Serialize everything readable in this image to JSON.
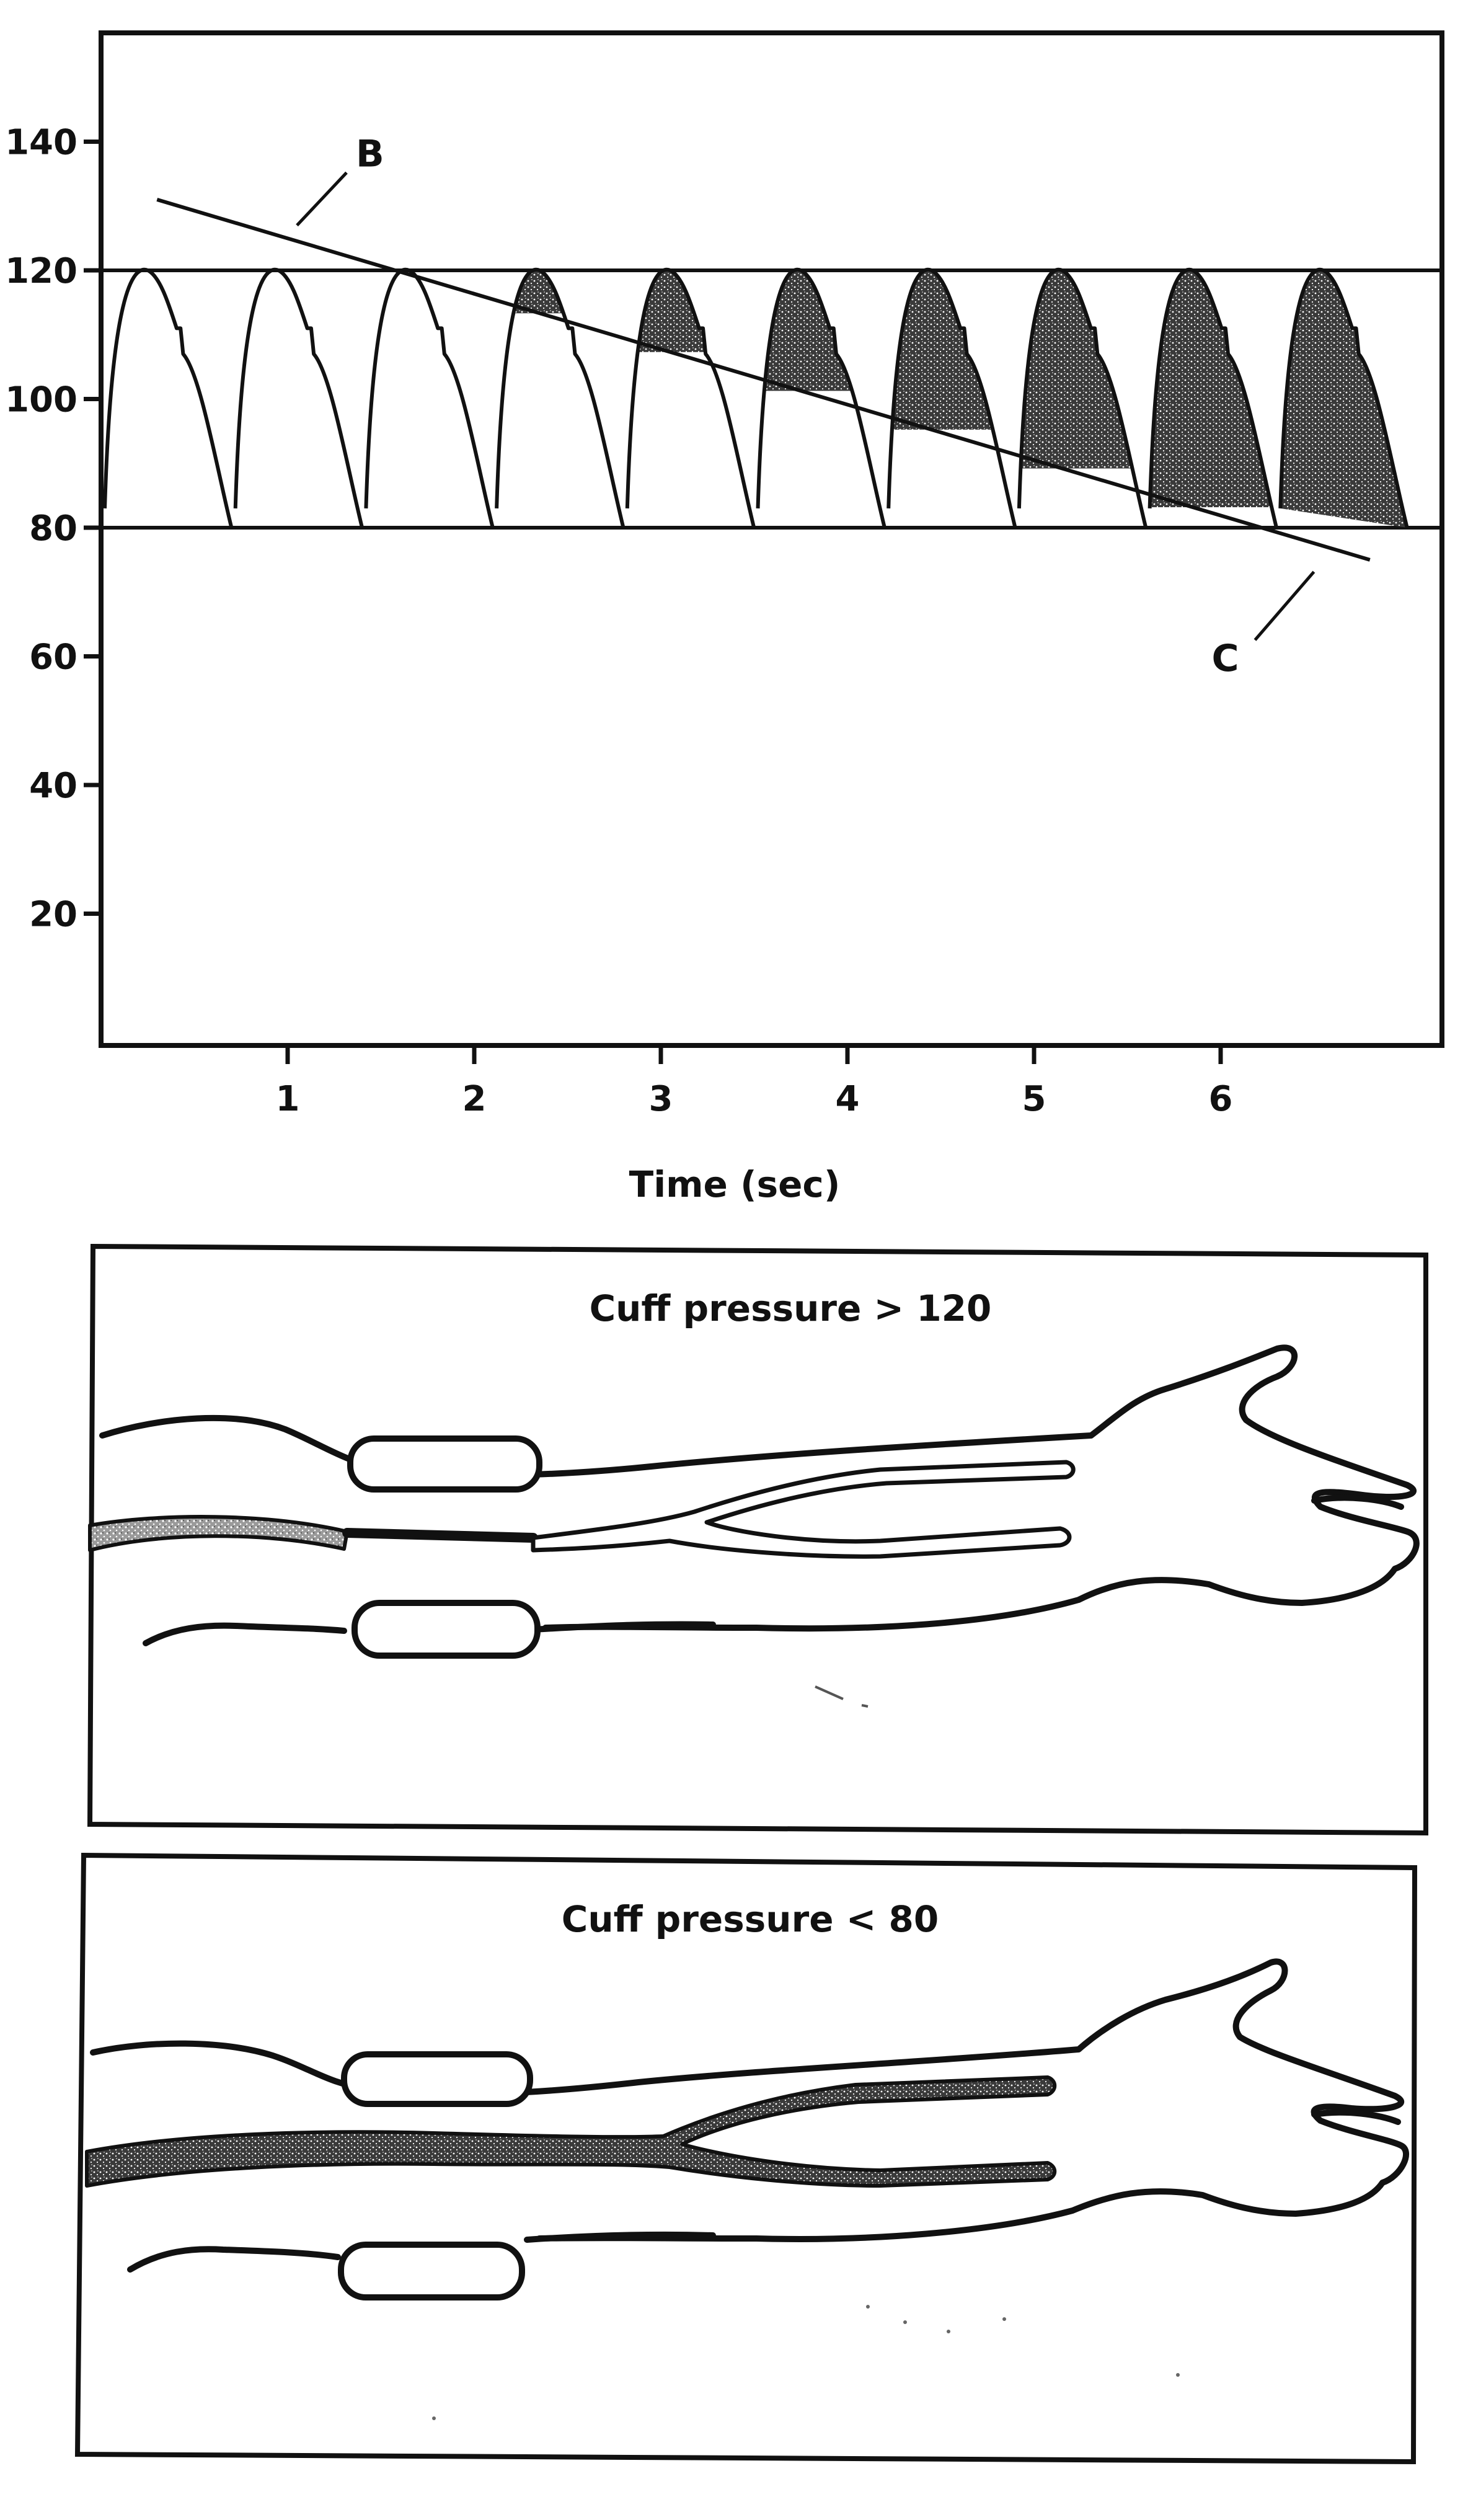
{
  "chart_data": {
    "type": "line",
    "y_ticks": [
      "140",
      "120",
      "100",
      "80",
      "60",
      "40",
      "20"
    ],
    "x_ticks": [
      "1",
      "2",
      "3",
      "4",
      "5",
      "6"
    ],
    "xlabel": "Time (sec)",
    "ylabel": "",
    "ylim": [
      0,
      160
    ],
    "xlim": [
      0,
      7
    ],
    "reference_lines": [
      120,
      80
    ],
    "pulse_count": 10,
    "pulse_systolic": 120,
    "pulse_diastolic": 80,
    "cuff_pressure_line": {
      "start": [
        0.3,
        131
      ],
      "end": [
        6.8,
        75
      ]
    },
    "annotations": [
      {
        "label": "B",
        "target": [
          1.05,
          127
        ]
      },
      {
        "label": "C",
        "target": [
          6.45,
          77
        ]
      }
    ],
    "grid": false,
    "shaded_color": "#2a2a2a"
  },
  "panels": [
    {
      "title": "Cuff pressure > 120"
    },
    {
      "title": "Cuff pressure < 80"
    }
  ]
}
